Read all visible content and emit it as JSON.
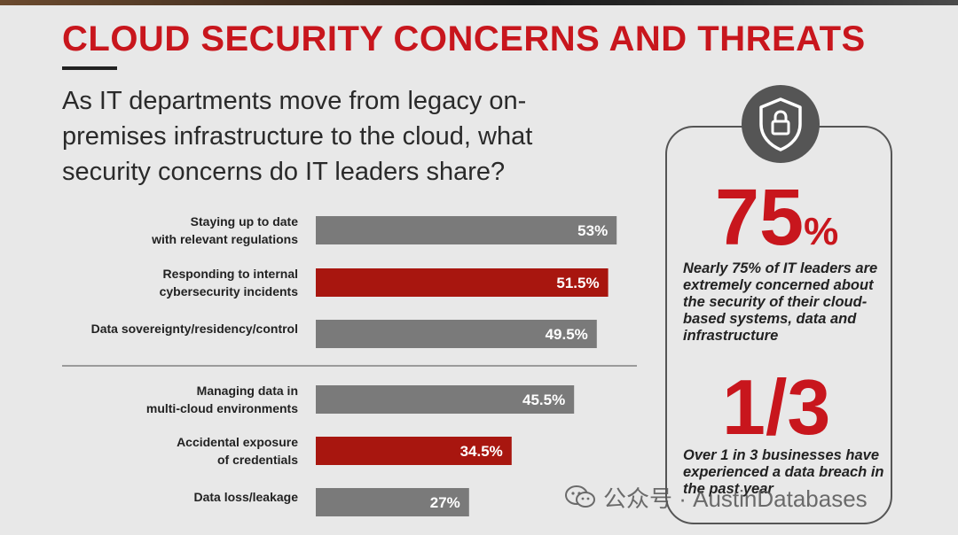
{
  "header": {
    "title": "CLOUD SECURITY CONCERNS AND THREATS",
    "question": "As IT departments move from legacy on-premises infrastructure to the cloud, what security concerns do IT leaders share?"
  },
  "chart_data": {
    "type": "bar",
    "orientation": "horizontal",
    "categories": [
      "Staying up to date with relevant regulations",
      "Responding to internal cybersecurity incidents",
      "Data sovereignty/residency/control",
      "Managing data in multi-cloud environments",
      "Accidental exposure of credentials",
      "Data loss/leakage"
    ],
    "values": [
      53,
      51.5,
      49.5,
      45.5,
      34.5,
      27
    ],
    "value_labels": [
      "53%",
      "51.5%",
      "49.5%",
      "45.5%",
      "34.5%",
      "27%"
    ],
    "label_lines": [
      [
        "Staying up to date",
        "with relevant regulations"
      ],
      [
        "Responding to internal",
        "cybersecurity incidents"
      ],
      [
        "Data sovereignty/residency/control"
      ],
      [
        "Managing data in",
        "multi-cloud environments"
      ],
      [
        "Accidental exposure",
        "of credentials"
      ],
      [
        "Data loss/leakage"
      ]
    ],
    "highlighted": [
      false,
      true,
      false,
      false,
      true,
      false
    ],
    "colors": {
      "default": "#7a7a7a",
      "highlight": "#a8160f",
      "label_text": "#ffffff"
    },
    "xlim": [
      0,
      60
    ]
  },
  "stats": {
    "first": {
      "value": "75",
      "unit": "%",
      "description": "Nearly 75% of IT leaders are extremely concerned about the security of their cloud-based systems, data and infrastructure"
    },
    "second": {
      "value": "1/3",
      "description": "Over 1 in 3 businesses have experienced a data breach in the past year"
    },
    "icon": "shield-lock-icon"
  },
  "watermark": {
    "text": "公众号 · AustinDatabases",
    "icon": "wechat-icon"
  },
  "colors": {
    "accent": "#c8161d",
    "background": "#e8e8e8",
    "text": "#2a2a2a"
  }
}
